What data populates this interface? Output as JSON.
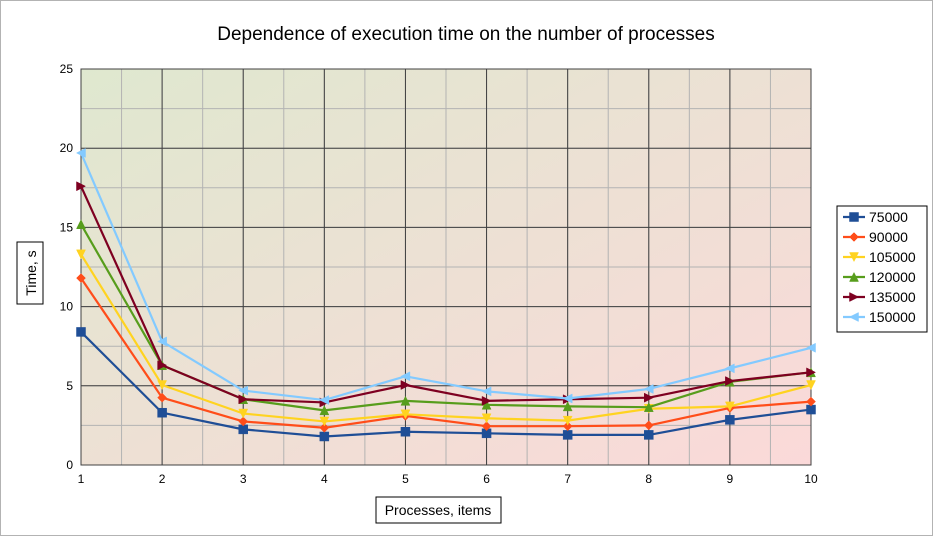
{
  "chart_data": {
    "type": "line",
    "title": "Dependence of execution time on the number of processes",
    "xlabel": "Processes, items",
    "ylabel": "Time, s",
    "x": [
      1,
      2,
      3,
      4,
      5,
      6,
      7,
      8,
      9,
      10
    ],
    "xlim": [
      1,
      10
    ],
    "ylim": [
      0,
      25
    ],
    "yticks": [
      0,
      5,
      10,
      15,
      20,
      25
    ],
    "grid": true,
    "legend_position": "right",
    "background_gradient": [
      "#dfe8cf",
      "#fbd9d9"
    ],
    "series": [
      {
        "name": "75000",
        "color": "#1f4e96",
        "marker": "square",
        "values": [
          8.4,
          3.3,
          2.25,
          1.8,
          2.1,
          2.0,
          1.9,
          1.9,
          2.85,
          3.5
        ]
      },
      {
        "name": "90000",
        "color": "#ff4d1a",
        "marker": "diamond",
        "values": [
          11.8,
          4.25,
          2.75,
          2.35,
          3.1,
          2.45,
          2.45,
          2.5,
          3.6,
          4.0
        ]
      },
      {
        "name": "105000",
        "color": "#ffd320",
        "marker": "triangle-down",
        "values": [
          13.3,
          5.05,
          3.25,
          2.75,
          3.2,
          2.95,
          2.8,
          3.55,
          3.7,
          5.05
        ]
      },
      {
        "name": "120000",
        "color": "#579d1c",
        "marker": "triangle-up",
        "values": [
          15.2,
          6.3,
          4.15,
          3.45,
          4.05,
          3.8,
          3.7,
          3.65,
          5.25,
          5.85
        ]
      },
      {
        "name": "135000",
        "color": "#7e0021",
        "marker": "triangle-right",
        "values": [
          17.6,
          6.3,
          4.15,
          3.95,
          5.05,
          4.05,
          4.15,
          4.25,
          5.3,
          5.85
        ]
      },
      {
        "name": "150000",
        "color": "#83caff",
        "marker": "triangle-left",
        "values": [
          19.7,
          7.8,
          4.7,
          4.1,
          5.6,
          4.65,
          4.2,
          4.8,
          6.1,
          7.4
        ]
      }
    ]
  }
}
